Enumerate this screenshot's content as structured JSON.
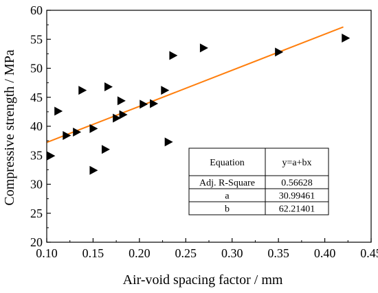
{
  "chart_data": {
    "type": "scatter",
    "xlabel": "Air-void spacing factor / mm",
    "ylabel": "Compressive strength / MPa",
    "xlim": [
      0.1,
      0.45
    ],
    "ylim": [
      20,
      60
    ],
    "xticks": [
      "0.10",
      "0.15",
      "0.20",
      "0.25",
      "0.30",
      "0.35",
      "0.40",
      "0.45"
    ],
    "yticks": [
      "20",
      "25",
      "30",
      "35",
      "40",
      "45",
      "50",
      "55",
      "60"
    ],
    "marker": "right-triangle",
    "marker_color": "#000000",
    "points": [
      {
        "x": 0.104,
        "y": 34.9
      },
      {
        "x": 0.112,
        "y": 42.6
      },
      {
        "x": 0.121,
        "y": 38.4
      },
      {
        "x": 0.132,
        "y": 39.0
      },
      {
        "x": 0.138,
        "y": 46.2
      },
      {
        "x": 0.15,
        "y": 39.6
      },
      {
        "x": 0.15,
        "y": 32.4
      },
      {
        "x": 0.163,
        "y": 36.0
      },
      {
        "x": 0.166,
        "y": 46.8
      },
      {
        "x": 0.175,
        "y": 41.4
      },
      {
        "x": 0.18,
        "y": 44.4
      },
      {
        "x": 0.182,
        "y": 42.0
      },
      {
        "x": 0.204,
        "y": 43.8
      },
      {
        "x": 0.215,
        "y": 43.9
      },
      {
        "x": 0.227,
        "y": 46.2
      },
      {
        "x": 0.231,
        "y": 37.3
      },
      {
        "x": 0.236,
        "y": 52.2
      },
      {
        "x": 0.269,
        "y": 53.5
      },
      {
        "x": 0.35,
        "y": 52.8
      },
      {
        "x": 0.422,
        "y": 55.2
      }
    ],
    "fit": {
      "color": "#ff7f0e",
      "x_range": [
        0.1,
        0.42
      ],
      "intercept": 30.99461,
      "slope": 62.21401
    },
    "table": {
      "rows": [
        [
          "Equation",
          "y=a+bx"
        ],
        [
          "Adj. R-Square",
          "0.56628"
        ],
        [
          "a",
          "30.99461"
        ],
        [
          "b",
          "62.21401"
        ]
      ]
    }
  }
}
